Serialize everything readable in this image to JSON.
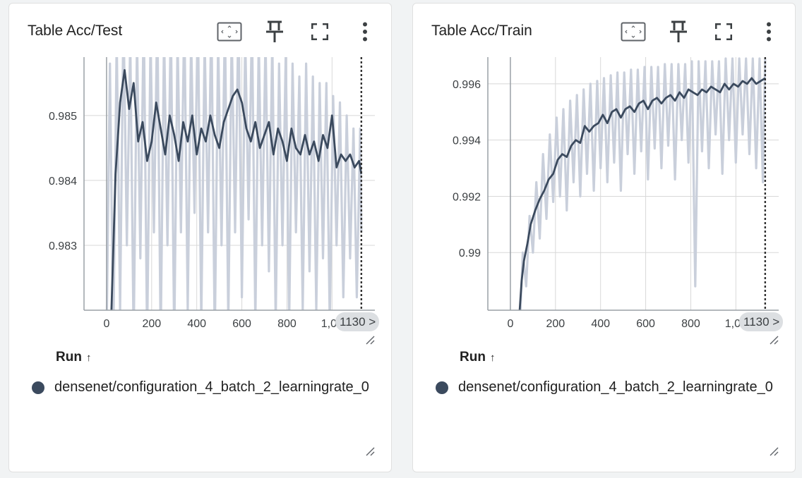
{
  "colors": {
    "smoothed": "#3b4a5e",
    "raw": "#c9cfdb",
    "grid": "#d8d8d8",
    "axis": "#9aa0a6",
    "marker": "#333333"
  },
  "icons": [
    "fit-to-data-icon",
    "pin-icon",
    "fullscreen-icon",
    "more-vert-icon",
    "resize-handle-icon"
  ],
  "cards": [
    {
      "title": "Table Acc/Test",
      "run_header": "Run",
      "run_sort_arrow": "↑",
      "run_name": "densenet/configuration_4_batch_2_learningrate_0",
      "x_badge": "1130 >",
      "y_ticks": [
        "0.985",
        "0.984",
        "0.983"
      ],
      "x_ticks": [
        "0",
        "200",
        "400",
        "600",
        "800",
        "1,00"
      ]
    },
    {
      "title": "Table Acc/Train",
      "run_header": "Run",
      "run_sort_arrow": "↑",
      "run_name": "densenet/configuration_4_batch_2_learningrate_0",
      "x_badge": "1130 >",
      "y_ticks": [
        "0.996",
        "0.994",
        "0.992",
        "0.99"
      ],
      "x_ticks": [
        "0",
        "200",
        "400",
        "600",
        "800",
        "1,00"
      ]
    }
  ],
  "chart_data": [
    {
      "type": "line",
      "title": "Table Acc/Test",
      "xlim": [
        -100,
        1190
      ],
      "ylim": [
        0.982,
        0.9859
      ],
      "x_ticks": [
        0,
        200,
        400,
        600,
        800,
        1000
      ],
      "y_ticks": [
        0.983,
        0.984,
        0.985
      ],
      "marker_x": 1130,
      "series": [
        {
          "role": "smoothed",
          "x": [
            0,
            20,
            40,
            60,
            80,
            100,
            120,
            140,
            160,
            180,
            200,
            220,
            240,
            260,
            280,
            300,
            320,
            340,
            360,
            380,
            400,
            420,
            440,
            460,
            480,
            500,
            520,
            540,
            560,
            580,
            600,
            620,
            640,
            660,
            680,
            700,
            720,
            740,
            760,
            780,
            800,
            820,
            840,
            860,
            880,
            900,
            920,
            940,
            960,
            980,
            1000,
            1020,
            1040,
            1060,
            1080,
            1100,
            1120,
            1130
          ],
          "y": [
            0.9818,
            0.9818,
            0.9841,
            0.9852,
            0.9857,
            0.9851,
            0.9855,
            0.9846,
            0.9849,
            0.9843,
            0.9846,
            0.9852,
            0.9848,
            0.9844,
            0.985,
            0.9847,
            0.9843,
            0.9849,
            0.9846,
            0.985,
            0.9844,
            0.9848,
            0.9846,
            0.985,
            0.9847,
            0.9845,
            0.9849,
            0.9851,
            0.9853,
            0.9854,
            0.9852,
            0.9848,
            0.9846,
            0.9849,
            0.9845,
            0.9847,
            0.9849,
            0.9844,
            0.9848,
            0.9846,
            0.9843,
            0.9848,
            0.9845,
            0.9844,
            0.9847,
            0.9844,
            0.9846,
            0.9843,
            0.9847,
            0.9845,
            0.985,
            0.9842,
            0.9844,
            0.9843,
            0.9844,
            0.9842,
            0.9843,
            0.9841
          ]
        },
        {
          "role": "raw",
          "x": [
            0,
            15,
            30,
            45,
            60,
            75,
            90,
            105,
            120,
            135,
            150,
            165,
            180,
            195,
            210,
            225,
            240,
            255,
            270,
            285,
            300,
            315,
            330,
            345,
            360,
            375,
            390,
            405,
            420,
            435,
            450,
            465,
            480,
            495,
            510,
            525,
            540,
            555,
            570,
            585,
            600,
            615,
            630,
            645,
            660,
            675,
            690,
            705,
            720,
            735,
            750,
            765,
            780,
            795,
            810,
            825,
            840,
            855,
            870,
            885,
            900,
            915,
            930,
            945,
            960,
            975,
            990,
            1005,
            1020,
            1035,
            1050,
            1065,
            1080,
            1095,
            1110,
            1125,
            1130
          ],
          "y": [
            0.9815,
            0.9858,
            0.9815,
            0.9862,
            0.982,
            0.9866,
            0.983,
            0.9862,
            0.9815,
            0.9862,
            0.9828,
            0.9866,
            0.9815,
            0.9862,
            0.9832,
            0.9866,
            0.9815,
            0.9863,
            0.983,
            0.9865,
            0.9815,
            0.9862,
            0.9832,
            0.9866,
            0.982,
            0.9862,
            0.9835,
            0.9866,
            0.9818,
            0.9862,
            0.9832,
            0.9866,
            0.9815,
            0.9862,
            0.983,
            0.9865,
            0.9818,
            0.9863,
            0.9832,
            0.9866,
            0.9822,
            0.9862,
            0.9834,
            0.9865,
            0.9818,
            0.9862,
            0.983,
            0.9862,
            0.9826,
            0.9862,
            0.9818,
            0.9858,
            0.983,
            0.986,
            0.9818,
            0.9858,
            0.9832,
            0.9856,
            0.982,
            0.9858,
            0.9826,
            0.9856,
            0.982,
            0.9855,
            0.9828,
            0.9855,
            0.9818,
            0.9853,
            0.983,
            0.9852,
            0.9822,
            0.985,
            0.9828,
            0.9848,
            0.9822,
            0.9848,
            0.9832
          ]
        }
      ]
    },
    {
      "type": "line",
      "title": "Table Acc/Train",
      "xlim": [
        -100,
        1190
      ],
      "ylim": [
        0.98795,
        0.99695
      ],
      "x_ticks": [
        0,
        200,
        400,
        600,
        800,
        1000
      ],
      "y_ticks": [
        0.99,
        0.992,
        0.994,
        0.996
      ],
      "marker_x": 1130,
      "series": [
        {
          "role": "smoothed",
          "x": [
            40,
            50,
            60,
            75,
            90,
            110,
            130,
            150,
            170,
            190,
            210,
            230,
            250,
            270,
            290,
            310,
            330,
            350,
            370,
            390,
            410,
            430,
            450,
            470,
            490,
            510,
            530,
            550,
            570,
            590,
            610,
            630,
            650,
            670,
            690,
            710,
            730,
            750,
            770,
            790,
            810,
            830,
            850,
            870,
            890,
            910,
            930,
            950,
            970,
            990,
            1010,
            1030,
            1050,
            1070,
            1090,
            1110,
            1130
          ],
          "y": [
            0.9878,
            0.989,
            0.9897,
            0.9903,
            0.991,
            0.9915,
            0.9919,
            0.9922,
            0.9926,
            0.9928,
            0.9933,
            0.9935,
            0.9934,
            0.9938,
            0.994,
            0.9939,
            0.9945,
            0.9943,
            0.9945,
            0.9946,
            0.9949,
            0.9946,
            0.995,
            0.9951,
            0.9948,
            0.9951,
            0.9952,
            0.995,
            0.9953,
            0.9954,
            0.9951,
            0.9954,
            0.9955,
            0.9953,
            0.9955,
            0.9956,
            0.9954,
            0.9957,
            0.9955,
            0.9958,
            0.9957,
            0.9956,
            0.9958,
            0.9957,
            0.9959,
            0.9958,
            0.9957,
            0.996,
            0.9958,
            0.996,
            0.9959,
            0.9961,
            0.996,
            0.9962,
            0.996,
            0.9961,
            0.9962
          ]
        },
        {
          "role": "raw",
          "x": [
            40,
            55,
            70,
            85,
            100,
            115,
            130,
            145,
            160,
            175,
            190,
            205,
            220,
            235,
            250,
            265,
            280,
            295,
            310,
            325,
            340,
            355,
            370,
            385,
            400,
            415,
            430,
            445,
            460,
            475,
            490,
            505,
            520,
            535,
            550,
            565,
            580,
            595,
            610,
            625,
            640,
            655,
            670,
            685,
            700,
            715,
            730,
            745,
            760,
            775,
            790,
            805,
            820,
            835,
            850,
            865,
            880,
            895,
            910,
            925,
            940,
            955,
            970,
            985,
            1000,
            1015,
            1030,
            1045,
            1060,
            1075,
            1090,
            1105,
            1120,
            1130
          ],
          "y": [
            0.987,
            0.99,
            0.9888,
            0.9913,
            0.99,
            0.9925,
            0.9905,
            0.9935,
            0.9912,
            0.9942,
            0.9918,
            0.9948,
            0.992,
            0.9951,
            0.9915,
            0.9954,
            0.9925,
            0.9956,
            0.992,
            0.9958,
            0.9928,
            0.996,
            0.9922,
            0.9961,
            0.993,
            0.9962,
            0.9925,
            0.9963,
            0.9932,
            0.9964,
            0.9922,
            0.9964,
            0.9935,
            0.9965,
            0.9928,
            0.9965,
            0.9936,
            0.9966,
            0.9926,
            0.9966,
            0.9937,
            0.9966,
            0.993,
            0.9967,
            0.9938,
            0.9967,
            0.9926,
            0.9967,
            0.994,
            0.9967,
            0.9932,
            0.9968,
            0.9888,
            0.9968,
            0.9936,
            0.9968,
            0.993,
            0.9968,
            0.9942,
            0.9968,
            0.9928,
            0.9969,
            0.994,
            0.9969,
            0.9932,
            0.9969,
            0.9942,
            0.9969,
            0.9935,
            0.9969,
            0.993,
            0.9969,
            0.9925,
            0.9969
          ]
        }
      ]
    }
  ]
}
